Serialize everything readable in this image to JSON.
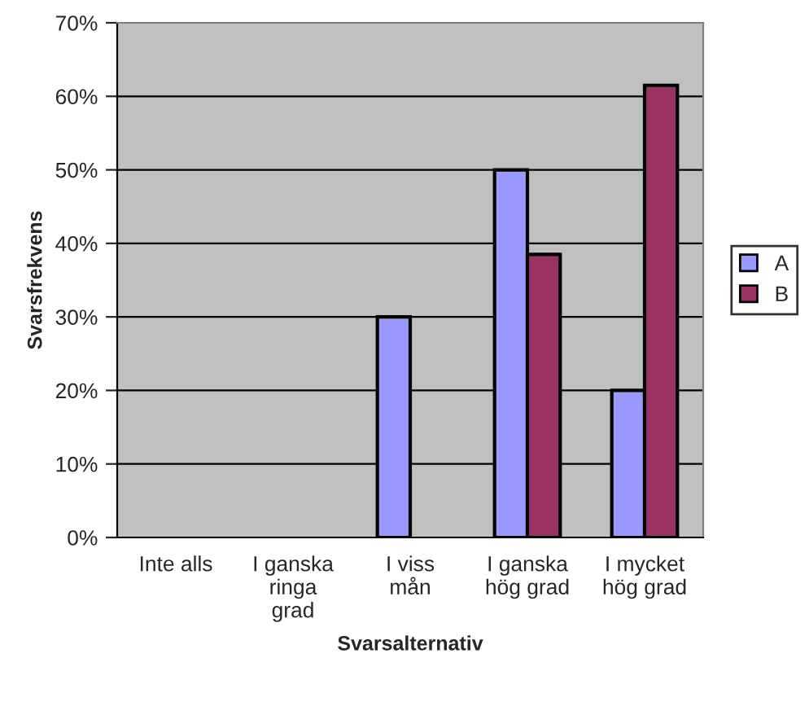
{
  "chart_data": {
    "type": "bar",
    "xlabel": "Svarsalternativ",
    "ylabel": "Svarsfrekvens",
    "categories": [
      "Inte alls",
      "I ganska\nringa\ngrad",
      "I viss\nmån",
      "I ganska\nhög grad",
      "I mycket\nhög grad"
    ],
    "series": [
      {
        "name": "A",
        "color": "#9999ff",
        "values": [
          0,
          0,
          30,
          50,
          20
        ]
      },
      {
        "name": "B",
        "color": "#993366",
        "values": [
          0,
          0,
          0,
          38.5,
          61.5
        ]
      }
    ],
    "ylim": [
      0,
      70
    ],
    "yticks": [
      {
        "value": 0,
        "label": "0%"
      },
      {
        "value": 10,
        "label": "10%"
      },
      {
        "value": 20,
        "label": "20%"
      },
      {
        "value": 30,
        "label": "30%"
      },
      {
        "value": 40,
        "label": "40%"
      },
      {
        "value": 50,
        "label": "50%"
      },
      {
        "value": 60,
        "label": "60%"
      },
      {
        "value": 70,
        "label": "70%"
      }
    ],
    "grid": "y",
    "legend": "right"
  }
}
